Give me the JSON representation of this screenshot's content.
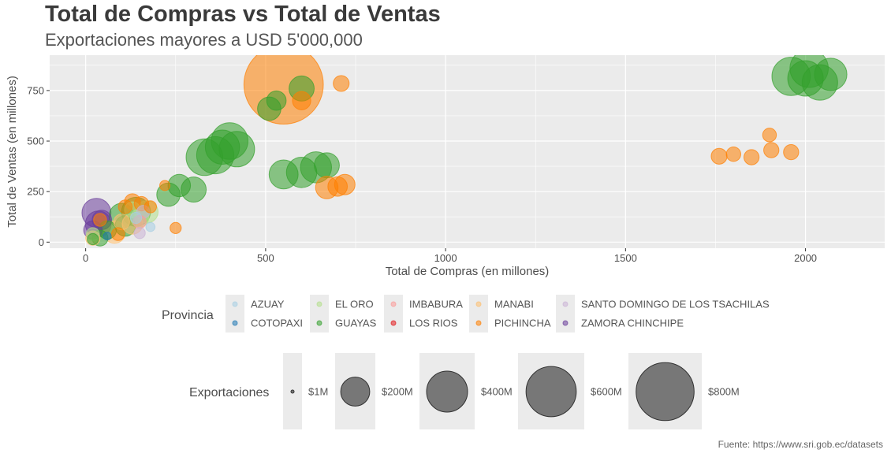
{
  "chart_data": {
    "type": "scatter",
    "title": "Total de Compras vs Total de Ventas",
    "subtitle": "Exportaciones mayores a USD 5'000,000",
    "xlabel": "Total de Compras (en millones)",
    "ylabel": "Total de Ventas (en millones)",
    "xlim": [
      -100,
      2220
    ],
    "ylim": [
      -30,
      925
    ],
    "xticks": [
      0,
      500,
      1000,
      1500,
      2000
    ],
    "yticks": [
      0,
      250,
      500,
      750
    ],
    "grid": true,
    "caption": "Fuente: https://www.sri.gob.ec/datasets",
    "color_legend": {
      "title": "Provincia",
      "entries": [
        {
          "name": "AZUAY",
          "color": "#a6cee3"
        },
        {
          "name": "COTOPAXI",
          "color": "#1f78b4"
        },
        {
          "name": "EL ORO",
          "color": "#b2df8a"
        },
        {
          "name": "GUAYAS",
          "color": "#33a02c"
        },
        {
          "name": "IMBABURA",
          "color": "#fb9a99"
        },
        {
          "name": "LOS RIOS",
          "color": "#e31a1c"
        },
        {
          "name": "MANABI",
          "color": "#fdbf6f"
        },
        {
          "name": "PICHINCHA",
          "color": "#ff7f00"
        },
        {
          "name": "SANTO DOMINGO DE LOS TSACHILAS",
          "color": "#cab2d6"
        },
        {
          "name": "ZAMORA CHINCHIPE",
          "color": "#6a3d9a"
        }
      ]
    },
    "size_legend": {
      "title": "Exportaciones",
      "entries": [
        {
          "label": "$1M",
          "value": 1
        },
        {
          "label": "$200M",
          "value": 200
        },
        {
          "label": "$400M",
          "value": 400
        },
        {
          "label": "$600M",
          "value": 600
        },
        {
          "label": "$800M",
          "value": 800
        }
      ]
    },
    "series": [
      {
        "name": "PICHINCHA",
        "points": [
          {
            "x": 550,
            "y": 780,
            "s": 1500
          },
          {
            "x": 710,
            "y": 785,
            "s": 60
          },
          {
            "x": 600,
            "y": 700,
            "s": 80
          },
          {
            "x": 1760,
            "y": 425,
            "s": 60
          },
          {
            "x": 1800,
            "y": 435,
            "s": 50
          },
          {
            "x": 1850,
            "y": 420,
            "s": 55
          },
          {
            "x": 1900,
            "y": 530,
            "s": 45
          },
          {
            "x": 1905,
            "y": 455,
            "s": 55
          },
          {
            "x": 1960,
            "y": 445,
            "s": 55
          },
          {
            "x": 670,
            "y": 270,
            "s": 120
          },
          {
            "x": 700,
            "y": 275,
            "s": 90
          },
          {
            "x": 720,
            "y": 285,
            "s": 100
          },
          {
            "x": 250,
            "y": 70,
            "s": 30
          },
          {
            "x": 220,
            "y": 280,
            "s": 25
          },
          {
            "x": 130,
            "y": 200,
            "s": 60
          },
          {
            "x": 110,
            "y": 175,
            "s": 45
          },
          {
            "x": 155,
            "y": 190,
            "s": 50
          },
          {
            "x": 90,
            "y": 40,
            "s": 40
          },
          {
            "x": 40,
            "y": 110,
            "s": 40
          },
          {
            "x": 180,
            "y": 175,
            "s": 35
          }
        ]
      },
      {
        "name": "GUAYAS",
        "points": [
          {
            "x": 1960,
            "y": 820,
            "s": 350
          },
          {
            "x": 2010,
            "y": 860,
            "s": 350
          },
          {
            "x": 2000,
            "y": 810,
            "s": 300
          },
          {
            "x": 2040,
            "y": 790,
            "s": 300
          },
          {
            "x": 2070,
            "y": 830,
            "s": 250
          },
          {
            "x": 600,
            "y": 760,
            "s": 150
          },
          {
            "x": 510,
            "y": 660,
            "s": 130
          },
          {
            "x": 530,
            "y": 700,
            "s": 90
          },
          {
            "x": 330,
            "y": 420,
            "s": 320
          },
          {
            "x": 360,
            "y": 430,
            "s": 330
          },
          {
            "x": 400,
            "y": 500,
            "s": 320
          },
          {
            "x": 420,
            "y": 460,
            "s": 300
          },
          {
            "x": 380,
            "y": 470,
            "s": 280
          },
          {
            "x": 550,
            "y": 335,
            "s": 200
          },
          {
            "x": 600,
            "y": 345,
            "s": 220
          },
          {
            "x": 640,
            "y": 370,
            "s": 230
          },
          {
            "x": 670,
            "y": 380,
            "s": 150
          },
          {
            "x": 230,
            "y": 235,
            "s": 130
          },
          {
            "x": 260,
            "y": 280,
            "s": 120
          },
          {
            "x": 300,
            "y": 260,
            "s": 150
          },
          {
            "x": 140,
            "y": 150,
            "s": 200
          },
          {
            "x": 100,
            "y": 130,
            "s": 150
          },
          {
            "x": 110,
            "y": 80,
            "s": 100
          },
          {
            "x": 60,
            "y": 60,
            "s": 80
          },
          {
            "x": 40,
            "y": 20,
            "s": 60
          },
          {
            "x": 20,
            "y": 15,
            "s": 30
          }
        ]
      },
      {
        "name": "EL ORO",
        "points": [
          {
            "x": 170,
            "y": 150,
            "s": 120
          },
          {
            "x": 150,
            "y": 120,
            "s": 80
          },
          {
            "x": 130,
            "y": 160,
            "s": 60
          },
          {
            "x": 20,
            "y": 40,
            "s": 40
          }
        ]
      },
      {
        "name": "ZAMORA CHINCHIPE",
        "points": [
          {
            "x": 30,
            "y": 145,
            "s": 200
          },
          {
            "x": 35,
            "y": 90,
            "s": 160
          },
          {
            "x": 20,
            "y": 60,
            "s": 80
          },
          {
            "x": 45,
            "y": 110,
            "s": 90
          }
        ]
      },
      {
        "name": "MANABI",
        "points": [
          {
            "x": 80,
            "y": 50,
            "s": 120
          },
          {
            "x": 130,
            "y": 90,
            "s": 100
          },
          {
            "x": 20,
            "y": 20,
            "s": 50
          },
          {
            "x": 100,
            "y": 100,
            "s": 60
          }
        ]
      },
      {
        "name": "AZUAY",
        "points": [
          {
            "x": 180,
            "y": 75,
            "s": 20
          },
          {
            "x": 140,
            "y": 120,
            "s": 30
          }
        ]
      },
      {
        "name": "SANTO DOMINGO DE LOS TSACHILAS",
        "points": [
          {
            "x": 150,
            "y": 45,
            "s": 30
          },
          {
            "x": 160,
            "y": 150,
            "s": 40
          }
        ]
      },
      {
        "name": "IMBABURA",
        "points": [
          {
            "x": 150,
            "y": 100,
            "s": 40
          }
        ]
      },
      {
        "name": "COTOPAXI",
        "points": [
          {
            "x": 60,
            "y": 30,
            "s": 15
          }
        ]
      }
    ]
  }
}
